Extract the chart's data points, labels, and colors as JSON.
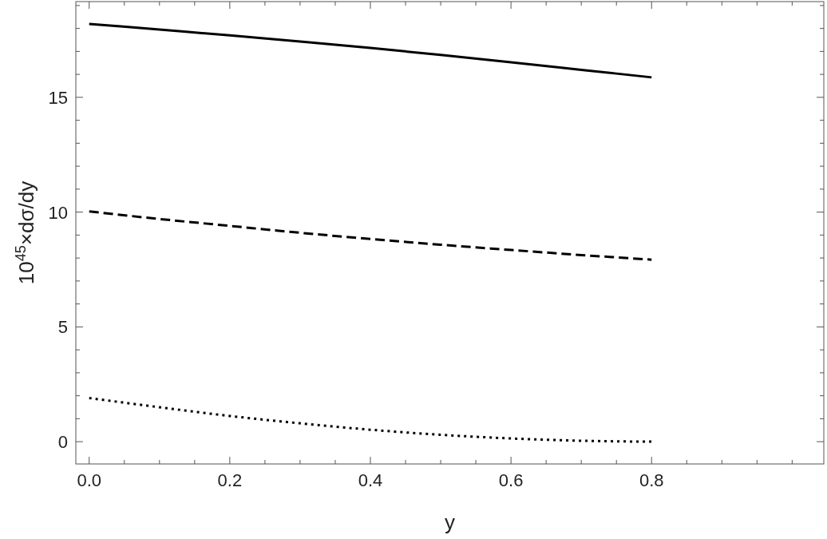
{
  "chart_data": {
    "type": "line",
    "xlabel": "y",
    "ylabel": "10$^{45}$×dσ/dy",
    "x": [
      0,
      0.1,
      0.2,
      0.3,
      0.4,
      0.5,
      0.6,
      0.7,
      0.8
    ],
    "series": [
      {
        "color": "#000000",
        "line_style": "solid",
        "values": [
          18.2,
          17.95,
          17.7,
          17.43,
          17.15,
          16.85,
          16.53,
          16.2,
          15.87
        ]
      },
      {
        "color": "#000000",
        "line_style": "dashed",
        "values": [
          10.03,
          9.7,
          9.4,
          9.1,
          8.83,
          8.58,
          8.35,
          8.13,
          7.93
        ]
      },
      {
        "color": "#000000",
        "line_style": "dotted",
        "values": [
          1.9,
          1.5,
          1.12,
          0.8,
          0.52,
          0.3,
          0.14,
          0.04,
          0.0
        ]
      }
    ],
    "xlim": [
      -0.019,
      1.045
    ],
    "ylim": [
      -0.97,
      19.17
    ],
    "xticks": [
      {
        "value": 0,
        "label": "0.0"
      },
      0.2,
      0.4,
      0.6,
      0.8,
      {
        "value": 0.05,
        "label": null
      },
      {
        "value": 0.1,
        "label": null
      },
      {
        "value": 0.15,
        "label": null
      },
      {
        "value": 0.25,
        "label": null
      },
      {
        "value": 0.3,
        "label": null
      },
      {
        "value": 0.35,
        "label": null
      },
      {
        "value": 0.45,
        "label": null
      },
      {
        "value": 0.5,
        "label": null
      },
      {
        "value": 0.55,
        "label": null
      },
      {
        "value": 0.65,
        "label": null
      },
      {
        "value": 0.7,
        "label": null
      },
      {
        "value": 0.75,
        "label": null
      },
      {
        "value": 0.85,
        "label": null
      },
      {
        "value": 0.9,
        "label": null
      },
      {
        "value": 0.95,
        "label": null
      },
      {
        "value": 1.0,
        "label": null
      }
    ],
    "yticks": [
      0,
      5,
      10,
      15,
      {
        "value": 1,
        "label": null
      },
      {
        "value": 2,
        "label": null
      },
      {
        "value": 3,
        "label": null
      },
      {
        "value": 4,
        "label": null
      },
      {
        "value": 6,
        "label": null
      },
      {
        "value": 7,
        "label": null
      },
      {
        "value": 8,
        "label": null
      },
      {
        "value": 9,
        "label": null
      },
      {
        "value": 11,
        "label": null
      },
      {
        "value": 12,
        "label": null
      },
      {
        "value": 13,
        "label": null
      },
      {
        "value": 14,
        "label": null
      },
      {
        "value": 16,
        "label": null
      },
      {
        "value": 17,
        "label": null
      },
      {
        "value": 18,
        "label": null
      },
      {
        "value": 19,
        "label": null
      }
    ],
    "grid": false,
    "marker": "none"
  }
}
